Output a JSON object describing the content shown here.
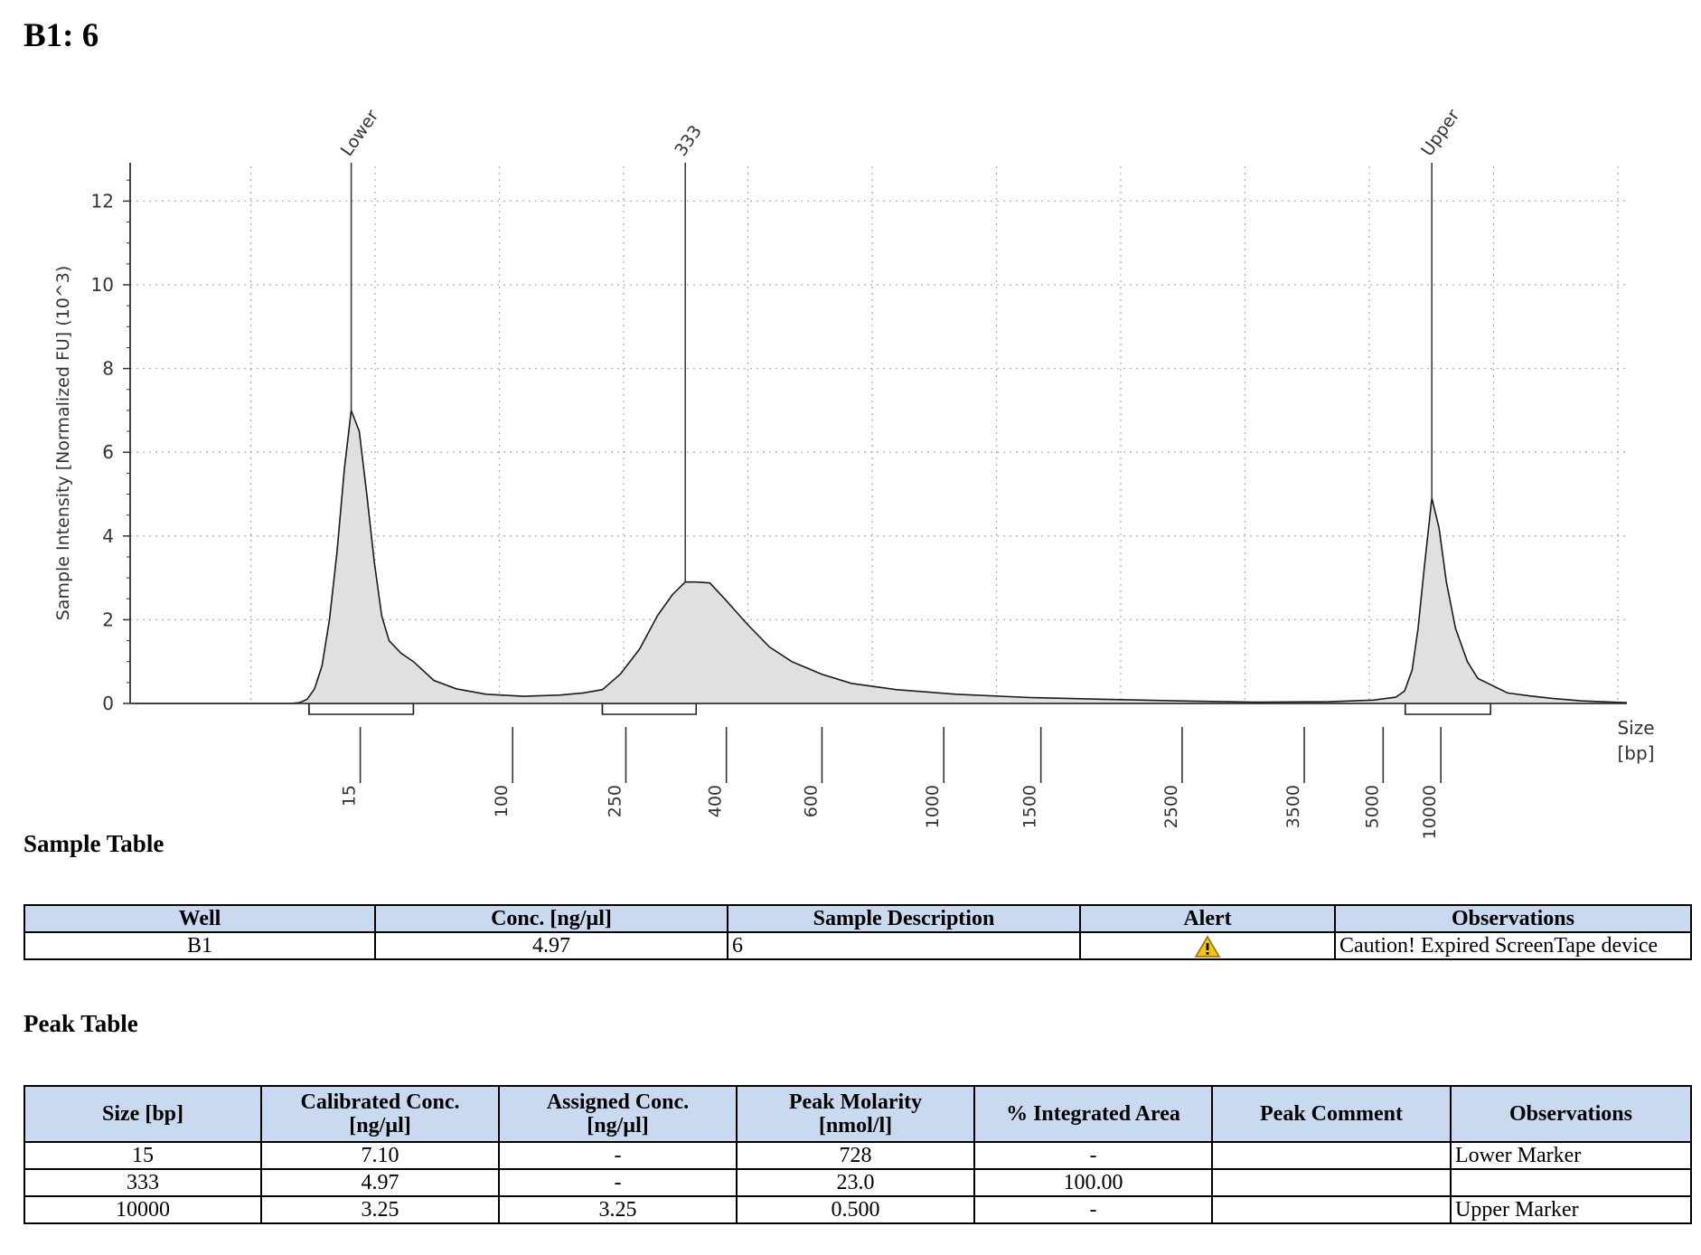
{
  "page": {
    "title": "B1: 6"
  },
  "chart_data": {
    "type": "line",
    "xlabel": "Size [bp]",
    "xlabel_lines": [
      "Size",
      "[bp]"
    ],
    "ylabel": "Sample Intensity [Normalized FU] (10^3)",
    "ylim": [
      0,
      12.7
    ],
    "yticks": [
      0,
      2,
      4,
      6,
      8,
      10,
      12
    ],
    "ytick_labels": [
      "0",
      "2",
      "4",
      "6",
      "8",
      "10",
      "12"
    ],
    "xtick_labels": [
      "15",
      "100",
      "250",
      "400",
      "600",
      "1000",
      "1500",
      "2500",
      "3500",
      "5000",
      "10000"
    ],
    "xtick_positions": [
      0.1446,
      0.2468,
      0.3227,
      0.3901,
      0.4542,
      0.5359,
      0.601,
      0.6957,
      0.7776,
      0.8305,
      0.8692
    ],
    "grid": true,
    "peaks": [
      {
        "label": "Lower",
        "size": 15,
        "intensity": 7.0,
        "position": 0.1446
      },
      {
        "label": "333",
        "size": 333,
        "intensity": 2.9,
        "position": 0.3686
      },
      {
        "label": "Upper",
        "size": 10000,
        "intensity": 4.9,
        "position": 0.8692
      }
    ],
    "regions": [
      {
        "start": 0.1163,
        "end": 0.1863
      },
      {
        "start": 0.313,
        "end": 0.3759
      },
      {
        "start": 0.8514,
        "end": 0.9086
      }
    ],
    "trace": [
      [
        0,
        0
      ],
      [
        0.05,
        0
      ],
      [
        0.08,
        0
      ],
      [
        0.104,
        0
      ],
      [
        0.11,
        0.02
      ],
      [
        0.115,
        0.1
      ],
      [
        0.12,
        0.35
      ],
      [
        0.125,
        0.9
      ],
      [
        0.13,
        2.0
      ],
      [
        0.135,
        3.6
      ],
      [
        0.14,
        5.6
      ],
      [
        0.1446,
        7.0
      ],
      [
        0.15,
        6.5
      ],
      [
        0.155,
        5.0
      ],
      [
        0.16,
        3.4
      ],
      [
        0.165,
        2.1
      ],
      [
        0.17,
        1.5
      ],
      [
        0.178,
        1.2
      ],
      [
        0.1863,
        1.0
      ],
      [
        0.2,
        0.55
      ],
      [
        0.215,
        0.35
      ],
      [
        0.235,
        0.22
      ],
      [
        0.26,
        0.17
      ],
      [
        0.285,
        0.2
      ],
      [
        0.3,
        0.25
      ],
      [
        0.313,
        0.33
      ],
      [
        0.325,
        0.7
      ],
      [
        0.338,
        1.3
      ],
      [
        0.35,
        2.1
      ],
      [
        0.36,
        2.6
      ],
      [
        0.3686,
        2.9
      ],
      [
        0.3759,
        2.9
      ],
      [
        0.385,
        2.88
      ],
      [
        0.395,
        2.5
      ],
      [
        0.41,
        1.9
      ],
      [
        0.425,
        1.35
      ],
      [
        0.44,
        1.0
      ],
      [
        0.46,
        0.7
      ],
      [
        0.48,
        0.48
      ],
      [
        0.51,
        0.33
      ],
      [
        0.55,
        0.22
      ],
      [
        0.6,
        0.14
      ],
      [
        0.65,
        0.1
      ],
      [
        0.7,
        0.06
      ],
      [
        0.75,
        0.03
      ],
      [
        0.8,
        0.04
      ],
      [
        0.83,
        0.08
      ],
      [
        0.845,
        0.15
      ],
      [
        0.851,
        0.3
      ],
      [
        0.856,
        0.8
      ],
      [
        0.86,
        1.8
      ],
      [
        0.864,
        3.2
      ],
      [
        0.8692,
        4.9
      ],
      [
        0.874,
        4.2
      ],
      [
        0.879,
        2.9
      ],
      [
        0.885,
        1.8
      ],
      [
        0.893,
        1.0
      ],
      [
        0.9,
        0.6
      ],
      [
        0.9086,
        0.45
      ],
      [
        0.92,
        0.25
      ],
      [
        0.935,
        0.18
      ],
      [
        0.95,
        0.12
      ],
      [
        0.97,
        0.06
      ],
      [
        1.0,
        0.02
      ]
    ]
  },
  "sample_section": {
    "title": "Sample Table",
    "headers": [
      "Well",
      "Conc. [ng/µl]",
      "Sample Description",
      "Alert",
      "Observations"
    ],
    "rows": [
      {
        "well": "B1",
        "conc": "4.97",
        "description": "6",
        "alert_icon": "warning-icon",
        "observations": "Caution! Expired ScreenTape device"
      }
    ]
  },
  "peak_section": {
    "title": "Peak Table",
    "headers": [
      {
        "line1": "Size [bp]",
        "line2": ""
      },
      {
        "line1": "Calibrated Conc.",
        "line2": "[ng/µl]"
      },
      {
        "line1": "Assigned Conc.",
        "line2": "[ng/µl]"
      },
      {
        "line1": "Peak Molarity",
        "line2": "[nmol/l]"
      },
      {
        "line1": "% Integrated Area",
        "line2": ""
      },
      {
        "line1": "Peak Comment",
        "line2": ""
      },
      {
        "line1": "Observations",
        "line2": ""
      }
    ],
    "rows": [
      {
        "size": "15",
        "calibrated": "7.10",
        "assigned": "-",
        "molarity": "728",
        "area": "-",
        "comment": "",
        "observations": "Lower Marker"
      },
      {
        "size": "333",
        "calibrated": "4.97",
        "assigned": "-",
        "molarity": "23.0",
        "area": "100.00",
        "comment": "",
        "observations": ""
      },
      {
        "size": "10000",
        "calibrated": "3.25",
        "assigned": "3.25",
        "molarity": "0.500",
        "area": "-",
        "comment": "",
        "observations": "Upper Marker"
      }
    ]
  },
  "colors": {
    "header_bg": "#c9d9ef",
    "fill": "#e0e0e0",
    "grid": "#b0b0b0",
    "warning": "#f3c316"
  }
}
